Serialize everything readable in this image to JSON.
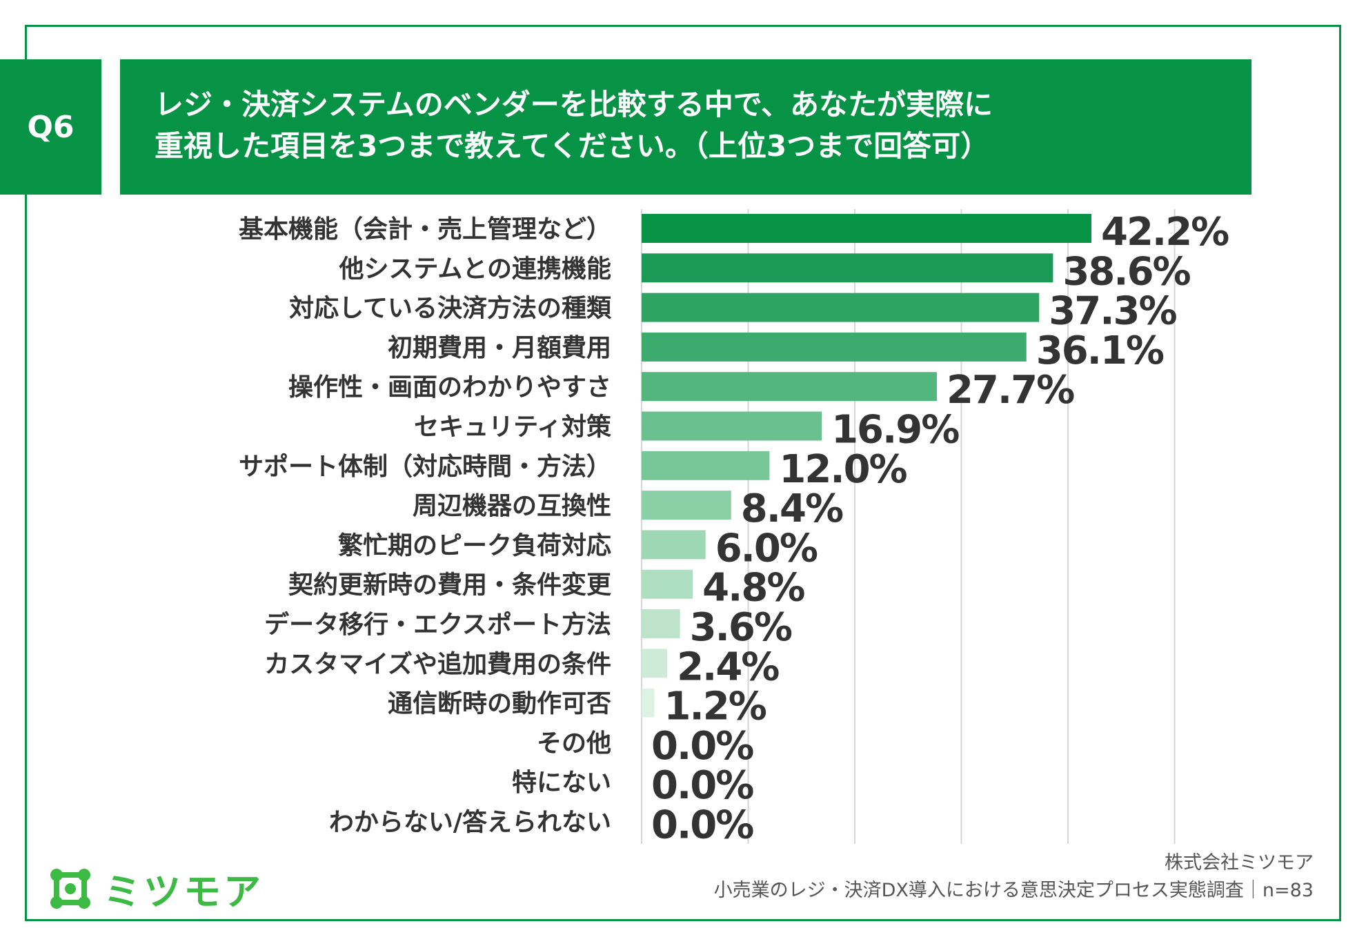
{
  "question": {
    "label": "Q6",
    "line1": "レジ・決済システムのベンダーを比較する中で、あなたが実際に",
    "line2": "重視した項目を3つまで教えてください。（上位3つまで回答可）"
  },
  "chart_data": {
    "type": "bar",
    "orientation": "horizontal",
    "xlim": [
      0,
      50
    ],
    "grid": true,
    "categories": [
      "基本機能（会計・売上管理など）",
      "他システムとの連携機能",
      "対応している決済方法の種類",
      "初期費用・月額費用",
      "操作性・画面のわかりやすさ",
      "セキュリティ対策",
      "サポート体制（対応時間・方法）",
      "周辺機器の互換性",
      "繁忙期のピーク負荷対応",
      "契約更新時の費用・条件変更",
      "データ移行・エクスポート方法",
      "カスタマイズや追加費用の条件",
      "通信断時の動作可否",
      "その他",
      "特にない",
      "わからない/答えられない"
    ],
    "values": [
      42.2,
      38.6,
      37.3,
      36.1,
      27.7,
      16.9,
      12.0,
      8.4,
      6.0,
      4.8,
      3.6,
      2.4,
      1.2,
      0.0,
      0.0,
      0.0
    ],
    "value_labels": [
      "42.2%",
      "38.6%",
      "37.3%",
      "36.1%",
      "27.7%",
      "16.9%",
      "12.0%",
      "8.4%",
      "6.0%",
      "4.8%",
      "3.6%",
      "2.4%",
      "1.2%",
      "0.0%",
      "0.0%",
      "0.0%"
    ],
    "colors": [
      "#069346",
      "#1a9a54",
      "#2ea362",
      "#3dab6e",
      "#53b67f",
      "#6ac18f",
      "#78c799",
      "#8bcfa7",
      "#9dd7b4",
      "#add df0",
      "#bde4cb",
      "#cdebd7",
      "#ddf2e4",
      "#e6f5eb",
      "#e6f5eb",
      "#e6f5eb"
    ]
  },
  "footer": {
    "company": "株式会社ミツモア",
    "survey": "小売業のレジ・決済DX導入における意思決定プロセス実態調査｜n=83"
  },
  "logo": {
    "text": "ミツモア",
    "color": "#3dba44"
  }
}
